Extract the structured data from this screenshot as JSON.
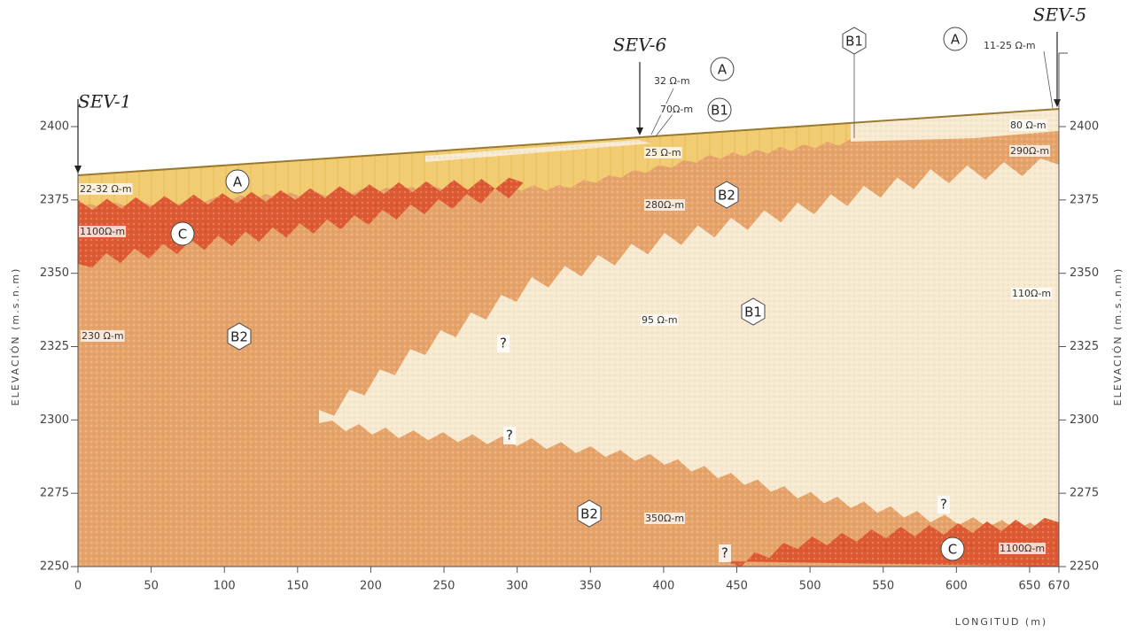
{
  "sounding_points": [
    "SEV-1",
    "SEV-6",
    "SEV-5"
  ],
  "unit_markers": [
    "A",
    "A",
    "A",
    "B1",
    "B1",
    "B1",
    "B2",
    "B2",
    "B2",
    "C",
    "C"
  ],
  "resistivity_labels": [
    "22-32 Ω-m",
    "1100Ω-m",
    "230 Ω-m",
    "32 Ω-m",
    "70Ω-m",
    "25 Ω-m",
    "280Ω-m",
    "95 Ω-m",
    "11-25 Ω-m",
    "80 Ω-m",
    "290Ω-m",
    "110Ω-m",
    "350Ω-m",
    "1100Ω-m"
  ],
  "uncertainty_marks": [
    "?",
    "?",
    "?",
    "?"
  ],
  "axes": {
    "y_left": {
      "title": "ELEVACIÓN (m.s.n.m)",
      "ticks": [
        2250,
        2275,
        2300,
        2325,
        2350,
        2375,
        2400
      ]
    },
    "y_right": {
      "title": "ELEVACIÓN (m.s.n.m)",
      "ticks": [
        2250,
        2275,
        2300,
        2325,
        2350,
        2375,
        2400
      ]
    },
    "x": {
      "title": "LONGITUD (m)",
      "ticks": [
        0,
        50,
        100,
        150,
        200,
        250,
        300,
        350,
        400,
        450,
        500,
        550,
        600,
        650,
        670
      ]
    }
  }
}
